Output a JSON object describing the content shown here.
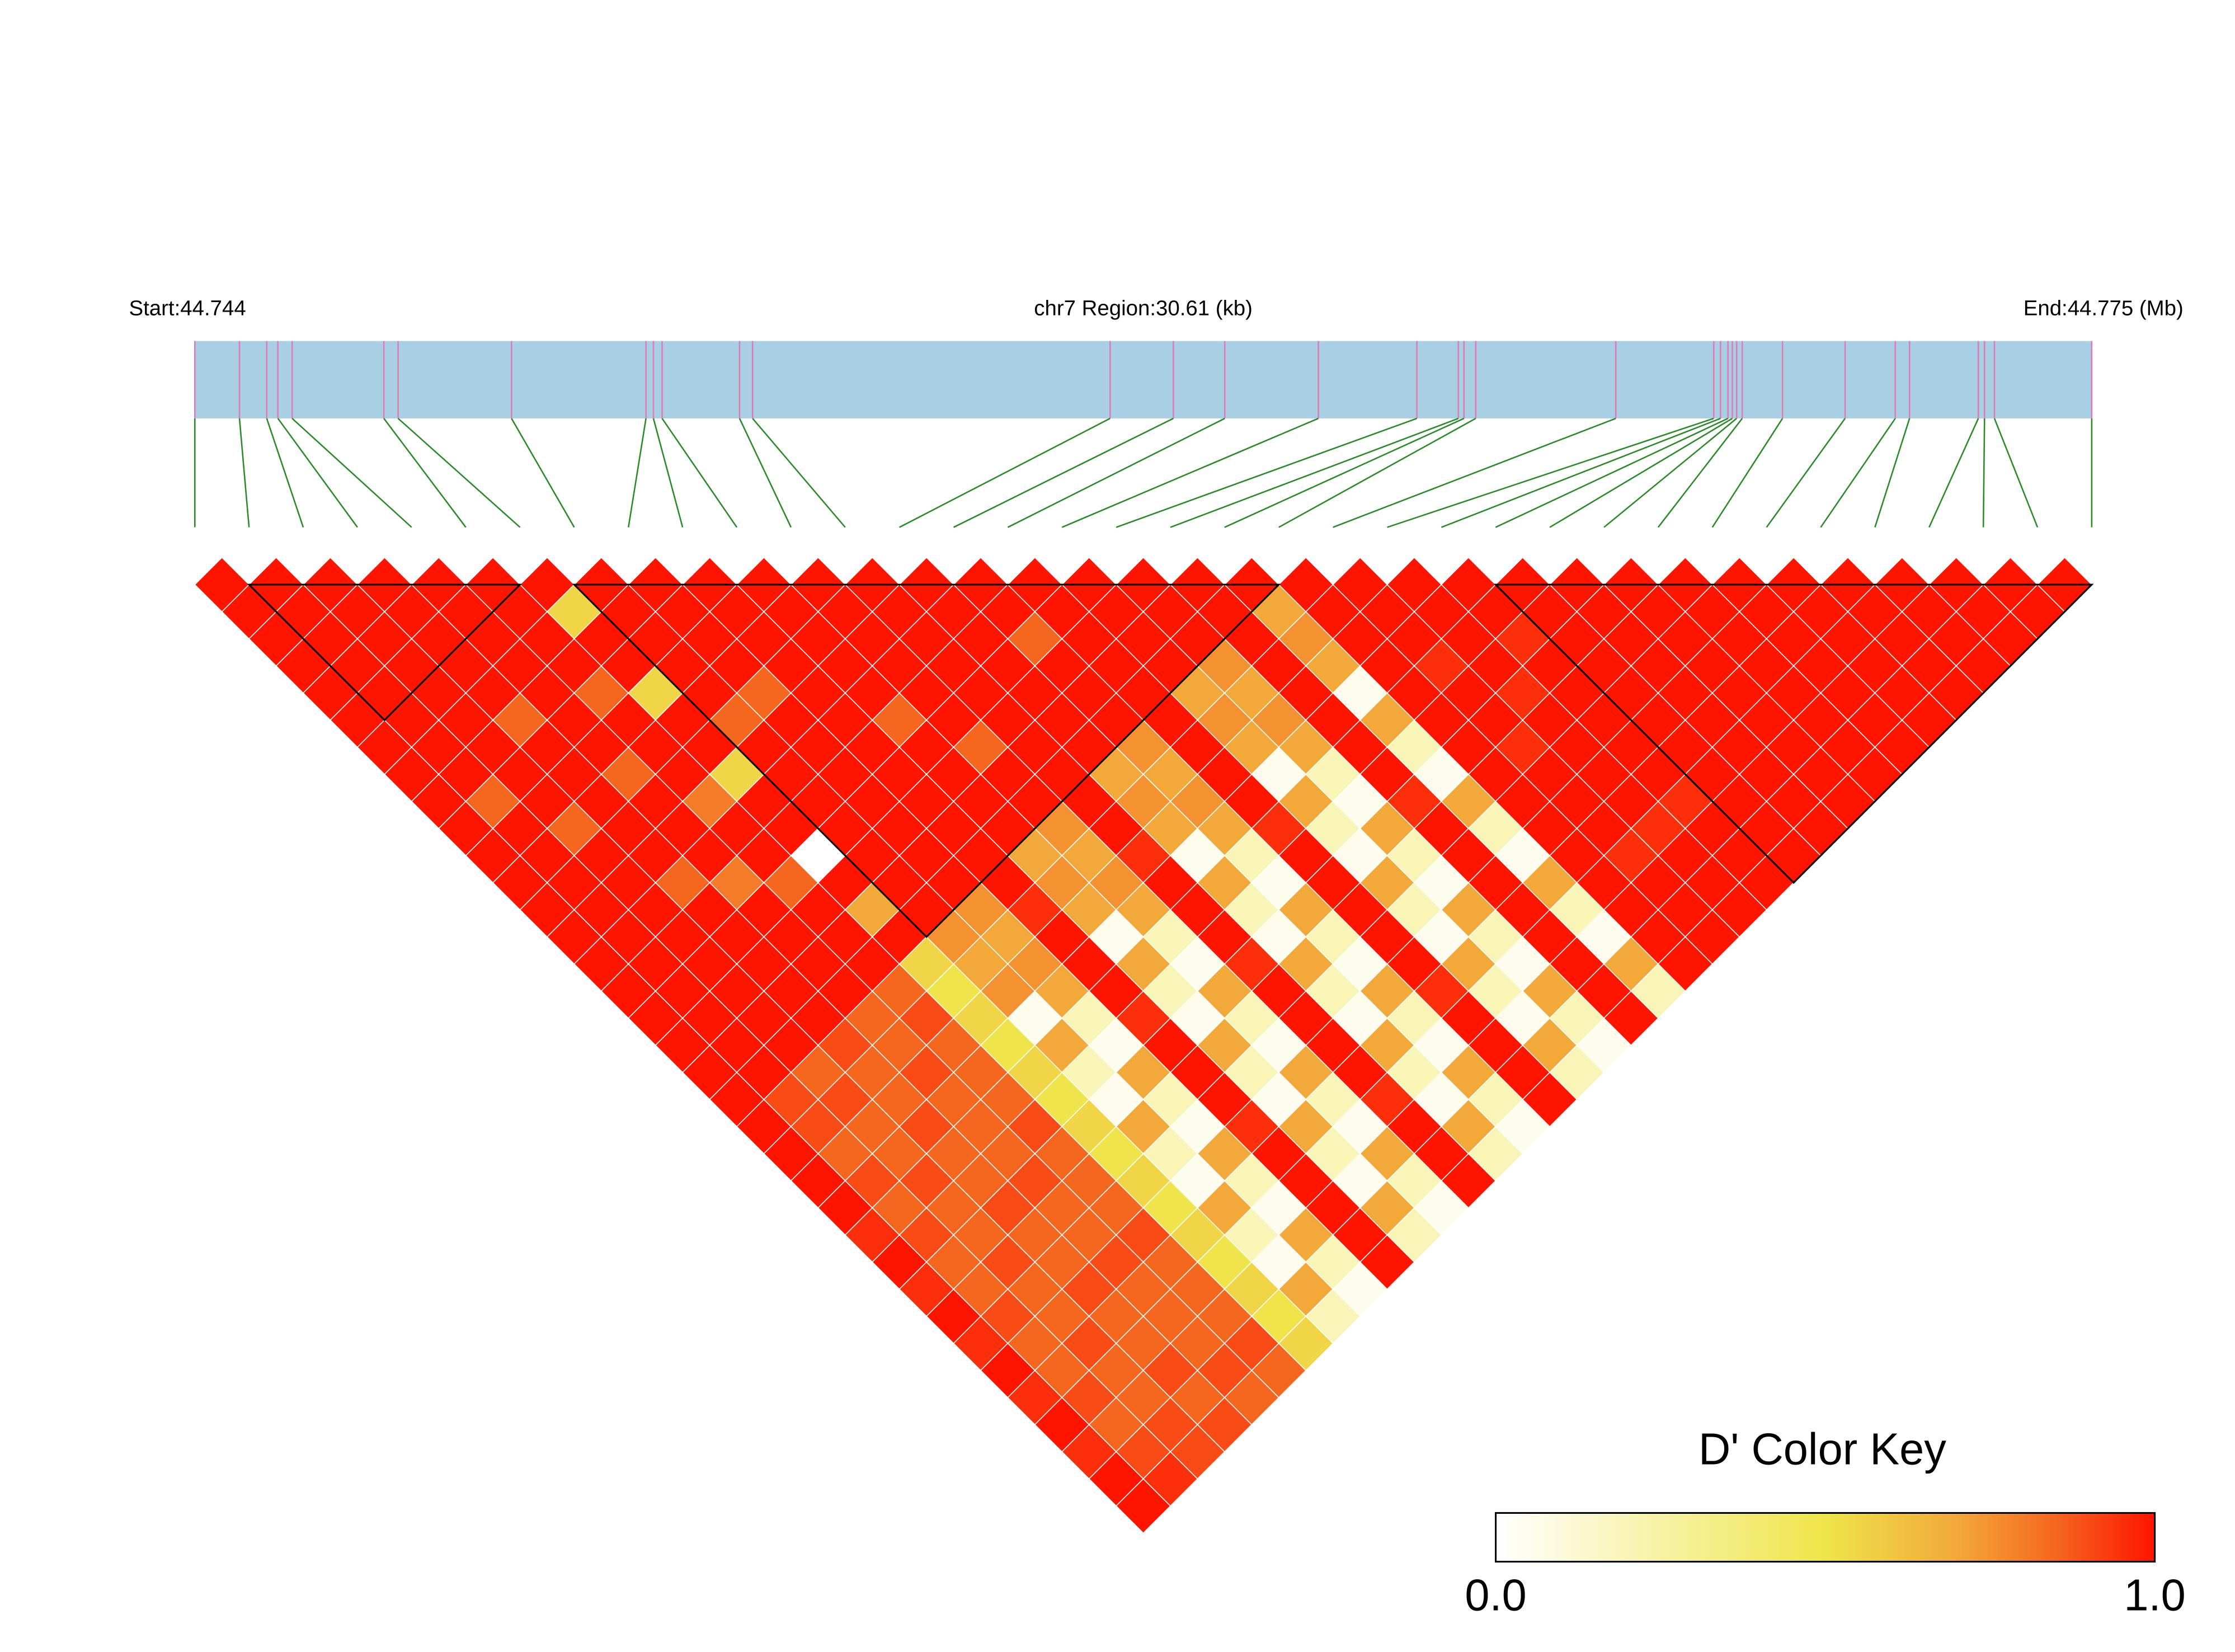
{
  "chart_data": {
    "type": "ld_heatmap",
    "start_label": "Start:44.744",
    "region_label": "chr7 Region:30.61 (kb)",
    "end_label": "End:44.775 (Mb)",
    "xlim": [
      0,
      30.61
    ],
    "snp_positions_kb": [
      0,
      0.72,
      1.16,
      1.34,
      1.57,
      3.05,
      3.28,
      5.11,
      7.28,
      7.4,
      7.54,
      8.79,
      9.0,
      14.77,
      15.79,
      16.62,
      18.13,
      19.72,
      20.39,
      20.48,
      20.67,
      22.93,
      24.51,
      24.62,
      24.74,
      24.81,
      24.88,
      24.97,
      25.62,
      26.63,
      27.44,
      27.67,
      28.78,
      28.88,
      29.04,
      30.61
    ],
    "bar_color": "#a8cfe3",
    "tick_color": "#e07bb5",
    "line_color": "#2a8a2a",
    "block_color": "#000000",
    "dprime": [
      [
        1,
        1,
        1,
        1,
        1,
        1,
        1,
        1,
        1,
        1,
        1,
        1,
        1,
        1,
        1,
        1,
        1,
        1,
        1,
        1,
        1,
        1,
        1,
        1,
        0.95,
        1,
        0.95,
        1,
        0.95,
        1,
        0.95,
        1,
        0.95,
        1,
        1
      ],
      [
        1,
        1,
        1,
        1,
        1,
        1,
        1,
        1,
        0.85,
        1,
        1,
        1,
        1,
        1,
        1,
        1,
        1,
        1,
        1,
        0.9,
        0.9,
        0.85,
        0.9,
        0.85,
        0.9,
        0.85,
        0.85,
        0.9,
        0.85,
        0.85,
        0.9,
        0.85,
        0.9,
        0.95
      ],
      [
        1,
        1,
        1,
        1,
        1,
        1,
        1,
        1,
        1,
        0.85,
        1,
        1,
        1,
        1,
        1,
        1,
        1,
        1,
        0.85,
        0.9,
        0.85,
        0.85,
        0.9,
        0.85,
        0.85,
        0.9,
        0.85,
        0.85,
        0.9,
        0.85,
        0.85,
        0.9,
        0.9
      ],
      [
        1,
        1,
        1,
        1,
        1,
        0.85,
        1,
        1,
        1,
        1,
        1,
        0.85,
        1,
        1,
        1,
        1,
        1,
        0.9,
        0.85,
        0.85,
        0.9,
        0.85,
        0.85,
        0.9,
        0.85,
        0.85,
        0.9,
        0.85,
        0.85,
        0.9,
        0.85,
        0.9
      ],
      [
        1,
        1,
        1,
        1,
        1,
        1,
        1,
        0.85,
        1,
        1,
        1,
        0.8,
        1,
        1,
        1,
        1,
        0.85,
        0.85,
        0.9,
        0.85,
        0.85,
        0.85,
        0.9,
        0.85,
        0.85,
        0.9,
        0.85,
        0.85,
        0.85,
        0.9,
        0.85
      ],
      [
        1,
        1,
        1,
        1,
        0.85,
        1,
        1,
        1,
        0.8,
        1,
        1,
        0.85,
        1,
        1,
        1,
        0.85,
        0.9,
        0.85,
        0.85,
        0.85,
        0.9,
        0.85,
        0.85,
        0.85,
        0.9,
        0.85,
        0.85,
        0.85,
        0.9,
        0.85
      ],
      [
        1,
        0.55,
        1,
        1,
        0.55,
        1,
        1,
        0.55,
        1,
        1,
        0,
        1,
        0.7,
        1,
        0.55,
        0.5,
        0.55,
        0.5,
        0.55,
        0.5,
        0.55,
        0.5,
        0.55,
        0.5,
        0.55,
        0.5,
        0.55,
        0.5,
        0.55
      ],
      [
        1,
        1,
        1,
        1,
        1,
        0.85,
        1,
        1,
        1,
        1,
        1,
        1,
        1,
        0.75,
        0.7,
        0.75,
        0.05,
        0.7,
        0.2,
        0.05,
        0.7,
        0.2,
        0.05,
        0.7,
        0.2,
        0.05,
        0.7,
        0.2
      ],
      [
        1,
        1,
        1,
        1,
        0.85,
        1,
        1,
        1,
        1,
        1,
        1,
        1,
        0.75,
        0.7,
        0.75,
        0.7,
        0.2,
        0.05,
        0.7,
        0.2,
        0.05,
        0.7,
        0.2,
        0.05,
        0.7,
        0.2,
        0.05
      ],
      [
        1,
        1,
        1,
        1,
        1,
        1,
        1,
        1,
        1,
        1,
        1,
        1,
        0.95,
        1,
        1,
        1,
        0.95,
        1,
        1,
        1,
        0.95,
        1,
        1,
        1,
        1,
        1
      ],
      [
        1,
        1,
        1,
        1,
        1,
        0.85,
        1,
        1,
        1,
        1,
        0.7,
        0.75,
        0.7,
        0.05,
        0.7,
        0.2,
        0.05,
        0.7,
        0.2,
        0.05,
        0.7,
        0.2,
        0.05,
        0.7,
        0.2
      ],
      [
        1,
        1,
        1,
        1,
        1,
        1,
        0.85,
        1,
        1,
        0.75,
        0.7,
        0.75,
        0.7,
        0.2,
        0.05,
        0.7,
        0.2,
        0.05,
        0.7,
        0.2,
        0.05,
        0.7,
        0.2,
        0.05
      ],
      [
        1,
        1,
        1,
        1,
        1,
        1,
        1,
        1,
        1,
        1,
        0.95,
        1,
        1,
        1,
        0.95,
        1,
        1,
        1,
        1,
        0.95,
        1,
        1,
        1
      ],
      [
        1,
        1,
        1,
        1,
        1,
        1,
        1,
        0.7,
        0.75,
        0.7,
        0.05,
        0.7,
        0.2,
        0.05,
        0.7,
        0.2,
        0.05,
        0.7,
        0.2,
        0.05,
        0.7,
        0.2
      ],
      [
        1,
        1,
        0.85,
        1,
        1,
        1,
        0.75,
        0.7,
        0.75,
        0.7,
        0.2,
        0.05,
        0.7,
        0.2,
        0.05,
        0.7,
        0.2,
        0.05,
        0.7,
        0.2,
        0.05
      ],
      [
        1,
        1,
        1,
        1,
        1,
        1,
        1,
        1,
        1,
        0.95,
        1,
        1,
        1,
        1,
        1,
        0.95,
        1,
        1,
        1,
        1
      ],
      [
        1,
        1,
        1,
        1,
        0.7,
        0.75,
        0.7,
        0.05,
        0.7,
        0.2,
        0.05,
        0.7,
        0.2,
        0.05,
        0.7,
        0.2,
        0.05,
        0.7,
        0.2
      ],
      [
        1,
        1,
        1,
        0.75,
        0.7,
        0.75,
        0.7,
        0.2,
        0.05,
        0.7,
        0.2,
        0.05,
        0.7,
        0.2,
        0.05,
        0.7,
        0.2,
        0.05
      ],
      [
        1,
        1,
        1,
        1,
        1,
        1,
        1,
        1,
        0.95,
        1,
        1,
        1,
        1,
        1,
        1,
        1,
        1
      ],
      [
        1,
        0.7,
        0.75,
        0.7,
        0.05,
        0.7,
        0.2,
        0.05,
        0.7,
        0.2,
        0.05,
        0.7,
        0.2,
        0.05,
        0.7,
        0.2
      ],
      [
        1,
        1,
        1,
        1,
        1,
        1,
        1,
        1,
        1,
        1,
        1,
        1,
        1,
        1,
        1
      ],
      [
        1,
        1,
        1,
        0.95,
        1,
        1,
        0.95,
        1,
        1,
        1,
        0.95,
        1,
        1,
        1
      ],
      [
        1,
        1,
        1,
        1,
        0.95,
        1,
        1,
        1,
        1,
        0.95,
        1,
        1,
        1
      ],
      [
        1,
        1,
        0.95,
        1,
        1,
        1,
        1,
        1,
        0.95,
        1,
        1,
        1
      ],
      [
        1,
        1,
        1,
        1,
        1,
        1,
        1,
        1,
        1,
        1,
        1
      ],
      [
        1,
        1,
        1,
        1,
        1,
        1,
        1,
        1,
        1,
        1
      ],
      [
        1,
        1,
        1,
        1,
        1,
        1,
        1,
        1,
        1
      ],
      [
        1,
        1,
        1,
        1,
        1,
        1,
        1,
        1
      ],
      [
        1,
        1,
        1,
        1,
        1,
        1,
        1
      ],
      [
        1,
        1,
        1,
        1,
        1,
        1
      ],
      [
        1,
        1,
        1,
        1,
        1
      ],
      [
        1,
        1,
        1,
        1
      ],
      [
        1,
        1,
        1
      ],
      [
        1,
        1
      ],
      [
        1
      ]
    ],
    "blocks": [
      [
        1,
        6
      ],
      [
        7,
        20
      ],
      [
        24,
        35
      ]
    ],
    "color_key": {
      "title": "D' Color Key",
      "lim": [
        0,
        1
      ],
      "ticks": [
        {
          "value": 0,
          "label": "0.0"
        },
        {
          "value": 1,
          "label": "1.0"
        }
      ],
      "stops": [
        {
          "value": 0,
          "color": "#ffffff"
        },
        {
          "value": 0.5,
          "color": "#efe54a"
        },
        {
          "value": 0.7,
          "color": "#f3a83a"
        },
        {
          "value": 0.85,
          "color": "#f5661f"
        },
        {
          "value": 1,
          "color": "#ff1400"
        }
      ]
    }
  }
}
